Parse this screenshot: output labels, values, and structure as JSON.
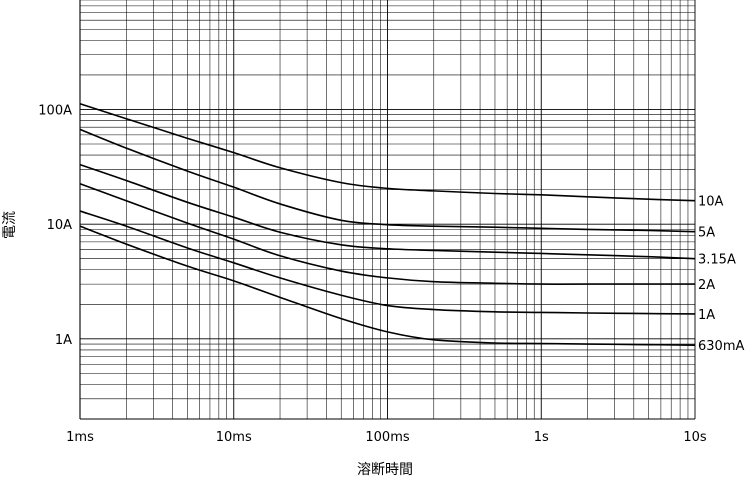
{
  "chart_data": {
    "type": "line",
    "xlabel": "溶断時間",
    "ylabel": "電流",
    "x_scale": "log",
    "y_scale": "log",
    "xlim": [
      "1ms",
      "10s"
    ],
    "ylim": [
      0.2,
      900
    ],
    "grid": true,
    "x_ticks": [
      {
        "value": 0.001,
        "label": "1ms"
      },
      {
        "value": 0.01,
        "label": "10ms"
      },
      {
        "value": 0.1,
        "label": "100ms"
      },
      {
        "value": 1,
        "label": "1s"
      },
      {
        "value": 10,
        "label": "10s"
      }
    ],
    "y_ticks": [
      {
        "value": 1,
        "label": "1A"
      },
      {
        "value": 10,
        "label": "10A"
      },
      {
        "value": 100,
        "label": "100A"
      }
    ],
    "series": [
      {
        "name": "10A",
        "points": [
          [
            0.001,
            112
          ],
          [
            0.002,
            83
          ],
          [
            0.005,
            56
          ],
          [
            0.01,
            42
          ],
          [
            0.02,
            31
          ],
          [
            0.05,
            23
          ],
          [
            0.1,
            20.5
          ],
          [
            0.2,
            19.5
          ],
          [
            0.5,
            18.5
          ],
          [
            1,
            18
          ],
          [
            2,
            17.3
          ],
          [
            5,
            16.5
          ],
          [
            10,
            16
          ]
        ]
      },
      {
        "name": "5A",
        "points": [
          [
            0.001,
            67
          ],
          [
            0.002,
            46
          ],
          [
            0.005,
            29
          ],
          [
            0.01,
            21
          ],
          [
            0.02,
            15
          ],
          [
            0.05,
            10.8
          ],
          [
            0.1,
            9.9
          ],
          [
            0.2,
            9.6
          ],
          [
            0.5,
            9.4
          ],
          [
            1,
            9.2
          ],
          [
            2,
            9.0
          ],
          [
            5,
            8.8
          ],
          [
            10,
            8.6
          ]
        ]
      },
      {
        "name": "3.15A",
        "points": [
          [
            0.001,
            33
          ],
          [
            0.002,
            24
          ],
          [
            0.005,
            15.5
          ],
          [
            0.01,
            11.5
          ],
          [
            0.02,
            8.5
          ],
          [
            0.05,
            6.6
          ],
          [
            0.1,
            6.1
          ],
          [
            0.2,
            5.9
          ],
          [
            0.5,
            5.7
          ],
          [
            1,
            5.55
          ],
          [
            2,
            5.4
          ],
          [
            5,
            5.2
          ],
          [
            10,
            5.0
          ]
        ]
      },
      {
        "name": "2A",
        "points": [
          [
            0.001,
            22.5
          ],
          [
            0.002,
            16
          ],
          [
            0.005,
            10.2
          ],
          [
            0.01,
            7.4
          ],
          [
            0.02,
            5.3
          ],
          [
            0.05,
            3.9
          ],
          [
            0.1,
            3.4
          ],
          [
            0.2,
            3.15
          ],
          [
            0.5,
            3.05
          ],
          [
            1,
            3.0
          ],
          [
            2,
            3.0
          ],
          [
            5,
            3.0
          ],
          [
            10,
            3.0
          ]
        ]
      },
      {
        "name": "1A",
        "points": [
          [
            0.001,
            13
          ],
          [
            0.002,
            9.6
          ],
          [
            0.005,
            6.2
          ],
          [
            0.01,
            4.6
          ],
          [
            0.02,
            3.4
          ],
          [
            0.05,
            2.4
          ],
          [
            0.1,
            1.95
          ],
          [
            0.2,
            1.8
          ],
          [
            0.5,
            1.72
          ],
          [
            1,
            1.7
          ],
          [
            2,
            1.68
          ],
          [
            5,
            1.66
          ],
          [
            10,
            1.65
          ]
        ]
      },
      {
        "name": "630mA",
        "points": [
          [
            0.001,
            9.6
          ],
          [
            0.002,
            6.7
          ],
          [
            0.005,
            4.3
          ],
          [
            0.01,
            3.2
          ],
          [
            0.02,
            2.3
          ],
          [
            0.05,
            1.5
          ],
          [
            0.1,
            1.15
          ],
          [
            0.2,
            0.98
          ],
          [
            0.5,
            0.92
          ],
          [
            1,
            0.91
          ],
          [
            2,
            0.9
          ],
          [
            5,
            0.89
          ],
          [
            10,
            0.88
          ]
        ]
      }
    ]
  }
}
